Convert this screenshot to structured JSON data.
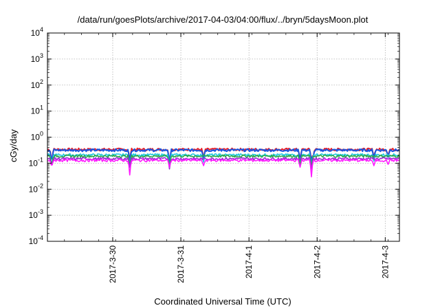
{
  "chart_data": {
    "type": "line",
    "title": "/data/run/goesPlots/archive/2017-04-03/04:00/flux/../bryn/5daysMoon.plot",
    "xlabel": "Coordinated Universal Time (UTC)",
    "ylabel": "cGy/day",
    "yscale": "log",
    "ylim": [
      0.0001,
      10000
    ],
    "y_ticks": [
      {
        "base": "10",
        "exp": "-4"
      },
      {
        "base": "10",
        "exp": "-3"
      },
      {
        "base": "10",
        "exp": "-2"
      },
      {
        "base": "10",
        "exp": "-1"
      },
      {
        "base": "10",
        "exp": "0"
      },
      {
        "base": "10",
        "exp": "1"
      },
      {
        "base": "10",
        "exp": "2"
      },
      {
        "base": "10",
        "exp": "3"
      },
      {
        "base": "10",
        "exp": "4"
      }
    ],
    "xlim": [
      "2017-03-29 01:00",
      "2017-04-03 05:00"
    ],
    "x_ticks": [
      "2017-3-30",
      "2017-3-31",
      "2017-4-1",
      "2017-4-2",
      "2017-4-3"
    ],
    "grid": true,
    "series": [
      {
        "color": "#e8202a",
        "baseline": 0.34,
        "dips": [
          [
            "2017-03-29 02:30",
            0.1
          ],
          [
            "2017-03-30 06:00",
            0.12
          ],
          [
            "2017-03-30 20:00",
            0.08
          ],
          [
            "2017-03-31 08:00",
            0.15
          ],
          [
            "2017-04-01 18:00",
            0.12
          ],
          [
            "2017-04-01 22:00",
            0.11
          ],
          [
            "2017-04-01 22:30",
            0.14
          ],
          [
            "2017-04-02 20:00",
            0.16
          ],
          [
            "2017-04-03 01:00",
            0.18
          ]
        ]
      },
      {
        "color": "#1a55e0",
        "baseline": 0.32,
        "dips": [
          [
            "2017-03-29 02:30",
            0.09
          ],
          [
            "2017-03-30 06:00",
            0.11
          ],
          [
            "2017-03-30 20:00",
            0.075
          ],
          [
            "2017-03-31 08:00",
            0.14
          ],
          [
            "2017-04-01 18:00",
            0.11
          ],
          [
            "2017-04-01 22:00",
            0.1
          ],
          [
            "2017-04-01 22:30",
            0.13
          ],
          [
            "2017-04-02 20:00",
            0.15
          ],
          [
            "2017-04-03 01:00",
            0.17
          ]
        ]
      },
      {
        "color": "#22c8e0",
        "baseline": 0.21,
        "dips": [
          [
            "2017-03-29 02:30",
            0.08
          ],
          [
            "2017-03-30 06:00",
            0.09
          ],
          [
            "2017-03-30 20:00",
            0.07
          ],
          [
            "2017-03-31 08:00",
            0.11
          ],
          [
            "2017-04-01 18:00",
            0.09
          ],
          [
            "2017-04-01 22:00",
            0.08
          ],
          [
            "2017-04-02 20:00",
            0.12
          ]
        ]
      },
      {
        "color": "#2aa84a",
        "baseline": 0.19,
        "dips": [
          [
            "2017-03-29 02:30",
            0.075
          ],
          [
            "2017-03-30 06:00",
            0.08
          ],
          [
            "2017-03-30 20:00",
            0.065
          ],
          [
            "2017-04-01 18:00",
            0.08
          ],
          [
            "2017-04-01 22:00",
            0.07
          ]
        ]
      },
      {
        "color": "#9a2ad0",
        "baseline": 0.15,
        "dips": [
          [
            "2017-03-29 02:30",
            0.07
          ],
          [
            "2017-03-30 06:00",
            0.07
          ],
          [
            "2017-03-30 20:00",
            0.06
          ],
          [
            "2017-04-01 22:00",
            0.06
          ]
        ]
      },
      {
        "color": "#ff1aff",
        "baseline": 0.13,
        "dips": [
          [
            "2017-03-29 02:30",
            0.07
          ],
          [
            "2017-03-30 06:00",
            0.035
          ],
          [
            "2017-03-30 20:00",
            0.07
          ],
          [
            "2017-03-31 08:00",
            0.08
          ],
          [
            "2017-04-01 18:00",
            0.07
          ],
          [
            "2017-04-01 22:00",
            0.03
          ],
          [
            "2017-04-02 20:00",
            0.08
          ],
          [
            "2017-04-03 01:00",
            0.09
          ]
        ]
      }
    ]
  }
}
